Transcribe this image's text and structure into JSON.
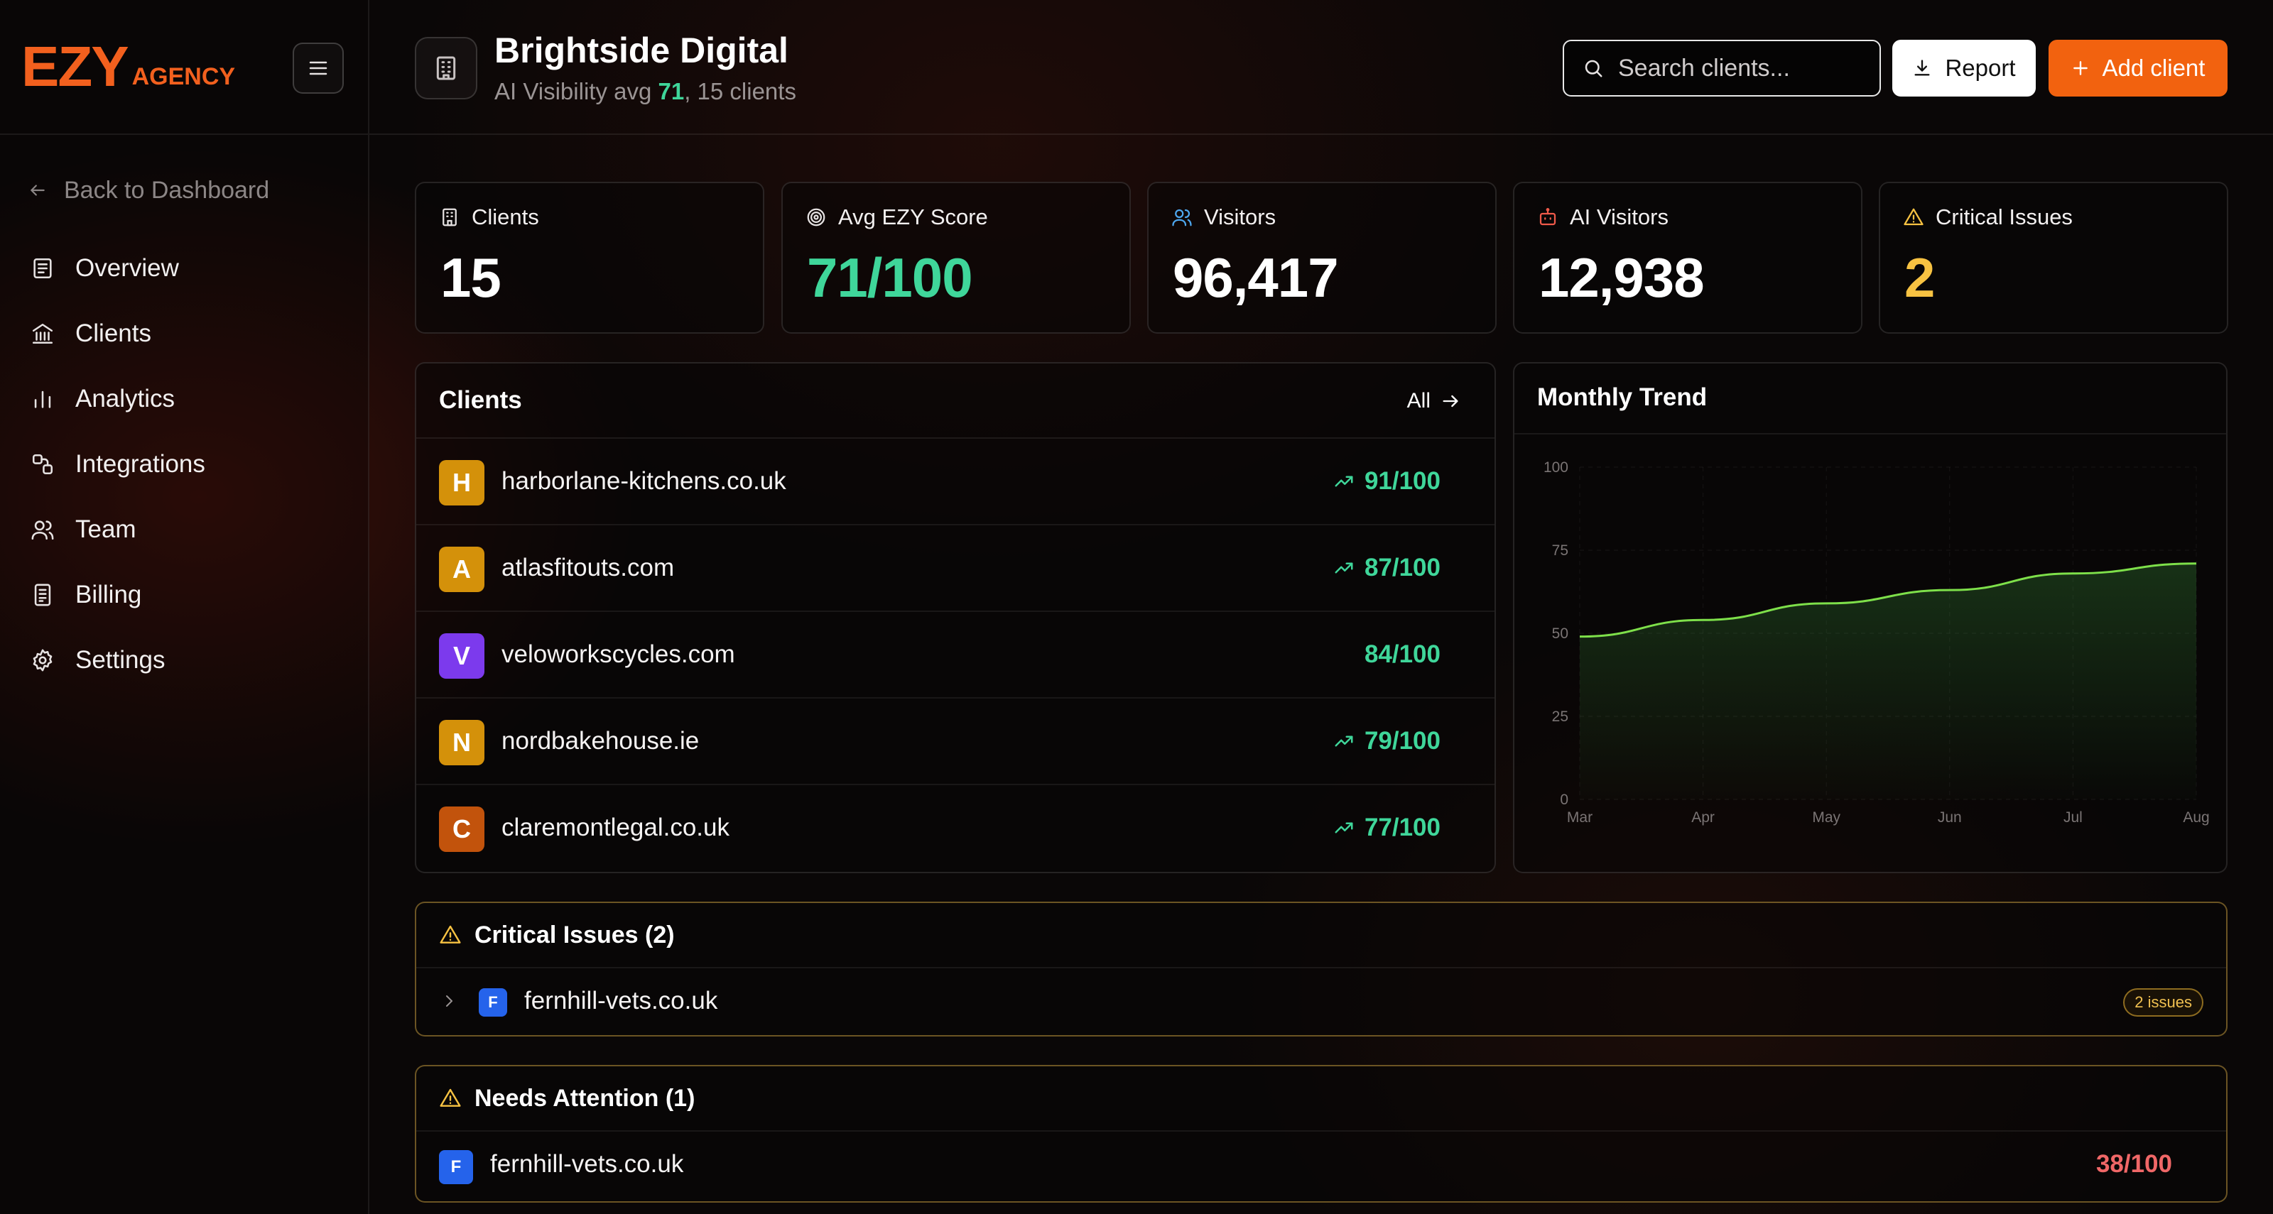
{
  "brand": {
    "logo_main": "EZY",
    "logo_sub": "AGENCY",
    "accent": "#f2601e"
  },
  "sidebar": {
    "back_label": "Back to Dashboard",
    "items": [
      {
        "label": "Overview",
        "icon": "overview-icon"
      },
      {
        "label": "Clients",
        "icon": "building-icon"
      },
      {
        "label": "Analytics",
        "icon": "bar-chart-icon"
      },
      {
        "label": "Integrations",
        "icon": "integrations-icon"
      },
      {
        "label": "Team",
        "icon": "team-icon"
      },
      {
        "label": "Billing",
        "icon": "billing-icon"
      },
      {
        "label": "Settings",
        "icon": "gear-icon"
      }
    ]
  },
  "header": {
    "title": "Brightside Digital",
    "subtitle_prefix": "AI Visibility avg ",
    "subtitle_avg": "71",
    "subtitle_suffix": ", 15 clients",
    "search_placeholder": "Search clients...",
    "report_label": "Report",
    "add_label": "Add client"
  },
  "stats": [
    {
      "label": "Clients",
      "value": "15",
      "color": "#ffffff",
      "icon": "building-icon"
    },
    {
      "label": "Avg EZY Score",
      "value": "71/100",
      "color": "#3fd69a",
      "icon": "target-icon"
    },
    {
      "label": "Visitors",
      "value": "96,417",
      "color": "#ffffff",
      "icon": "users-icon"
    },
    {
      "label": "AI Visitors",
      "value": "12,938",
      "color": "#ffffff",
      "icon": "robot-icon"
    },
    {
      "label": "Critical Issues",
      "value": "2",
      "color": "#f7c242",
      "icon": "warning-icon"
    }
  ],
  "clients_panel": {
    "title": "Clients",
    "all_label": "All",
    "rows": [
      {
        "initial": "H",
        "name": "harborlane-kitchens.co.uk",
        "score": "91/100",
        "trend": true,
        "color": "#d4910a"
      },
      {
        "initial": "A",
        "name": "atlasfitouts.com",
        "score": "87/100",
        "trend": true,
        "color": "#d4910a"
      },
      {
        "initial": "V",
        "name": "veloworkscycles.com",
        "score": "84/100",
        "trend": false,
        "color": "#7c3aed"
      },
      {
        "initial": "N",
        "name": "nordbakehouse.ie",
        "score": "79/100",
        "trend": true,
        "color": "#d4910a"
      },
      {
        "initial": "C",
        "name": "claremontlegal.co.uk",
        "score": "77/100",
        "trend": true,
        "color": "#c2530c"
      }
    ]
  },
  "trend_panel": {
    "title": "Monthly Trend"
  },
  "chart_data": {
    "type": "area",
    "title": "Monthly Trend",
    "categories": [
      "Mar",
      "Apr",
      "May",
      "Jun",
      "Jul",
      "Aug"
    ],
    "series": [
      {
        "values": [
          49,
          54,
          59,
          63,
          68,
          71
        ]
      }
    ],
    "yticks": [
      "0",
      "25",
      "50",
      "75",
      "100"
    ],
    "ylim": [
      0,
      100
    ],
    "grid": true,
    "line_color": "#7ee04a"
  },
  "critical_panel": {
    "title": "Critical Issues (2)",
    "rows": [
      {
        "initial": "F",
        "name": "fernhill-vets.co.uk",
        "badge": "2 issues",
        "color": "#2563eb"
      }
    ]
  },
  "attention_panel": {
    "title": "Needs Attention (1)",
    "rows": [
      {
        "initial": "F",
        "name": "fernhill-vets.co.uk",
        "score": "38/100",
        "score_color": "#f06767",
        "color": "#2563eb"
      }
    ]
  }
}
